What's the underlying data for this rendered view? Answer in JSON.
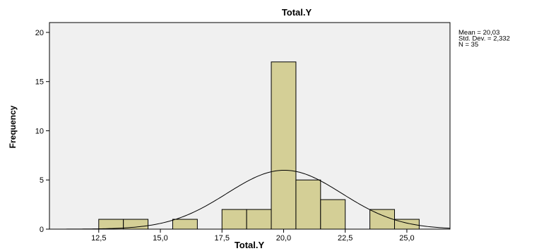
{
  "chart_data": {
    "type": "bar",
    "title": "Total.Y",
    "xlabel": "Total.Y",
    "ylabel": "Frequency",
    "xlim": [
      10.5,
      26.75
    ],
    "ylim": [
      0,
      21
    ],
    "x_ticks": [
      "12,5",
      "15,0",
      "17,5",
      "20,0",
      "22,5",
      "25,0"
    ],
    "x_tick_values": [
      12.5,
      15.0,
      17.5,
      20.0,
      22.5,
      25.0
    ],
    "y_ticks": [
      "0",
      "5",
      "10",
      "15",
      "20"
    ],
    "y_tick_values": [
      0,
      5,
      10,
      15,
      20
    ],
    "bin_width": 1,
    "bins": [
      {
        "start": 12.5,
        "value": 1
      },
      {
        "start": 13.5,
        "value": 1
      },
      {
        "start": 15.5,
        "value": 1
      },
      {
        "start": 17.5,
        "value": 2
      },
      {
        "start": 18.5,
        "value": 2
      },
      {
        "start": 19.5,
        "value": 17
      },
      {
        "start": 20.5,
        "value": 5
      },
      {
        "start": 21.5,
        "value": 3
      },
      {
        "start": 23.5,
        "value": 2
      },
      {
        "start": 24.5,
        "value": 1
      }
    ],
    "normal_curve": {
      "mean": 20.03,
      "sd": 2.332,
      "n": 35
    },
    "stats_text": [
      "Mean = 20,03",
      "Std. Dev. = 2,332",
      "N = 35"
    ],
    "colors": {
      "bar_fill": "#d4cf96",
      "bar_stroke": "#000000",
      "plot_bg": "#f0f0f0",
      "curve": "#000000"
    },
    "grid": false
  }
}
